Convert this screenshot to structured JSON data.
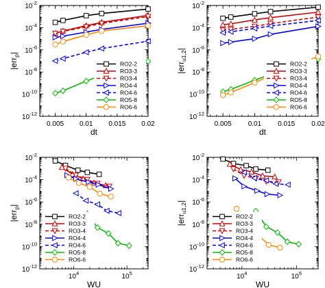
{
  "chart_data": [
    {
      "type": "line",
      "panel": "top-left",
      "xlabel": "dt",
      "ylabel_main": "|err",
      "ylabel_sub": "p",
      "ylabel_end": "|",
      "xscale": "linear",
      "yscale": "log",
      "xlim": [
        0.0025,
        0.02
      ],
      "ylim_exp": [
        -12,
        -2
      ],
      "xticks": [
        0.005,
        0.01,
        0.015,
        0.02
      ],
      "xtick_labels": [
        "0.005",
        "0.01",
        "0.015",
        "0.02"
      ],
      "ytick_exps": [
        -12,
        -10,
        -8,
        -6,
        -4,
        -2
      ],
      "ytick_base": "10",
      "ytick_exp_labels": [
        "-12",
        "-10",
        "-8",
        "-6",
        "-4",
        "-2"
      ],
      "legend_position": "inside lower-right",
      "series": [
        {
          "name": "RO2-2",
          "color": "#000000",
          "dash": false,
          "marker": "square",
          "x": [
            0.005,
            0.00625,
            0.01,
            0.0125,
            0.02
          ],
          "y": [
            0.0003,
            0.00045,
            0.0012,
            0.0019,
            0.0048
          ]
        },
        {
          "name": "RO3-3",
          "color": "#cc0000",
          "dash": false,
          "marker": "triangle-up",
          "x": [
            0.005,
            0.00625,
            0.01,
            0.0125,
            0.02
          ],
          "y": [
            3e-05,
            5e-05,
            0.00015,
            0.0003,
            0.0013
          ]
        },
        {
          "name": "RO3-4",
          "color": "#cc0000",
          "dash": true,
          "marker": "triangle-down",
          "x": [
            0.005,
            0.00625,
            0.01,
            0.0125,
            0.02
          ],
          "y": [
            3e-05,
            4.5e-05,
            0.00012,
            0.00024,
            0.001
          ]
        },
        {
          "name": "RO4-4",
          "color": "#0000ff",
          "dash": false,
          "marker": "triangle-right",
          "x": [
            0.005,
            0.00625,
            0.01,
            0.0125,
            0.02
          ],
          "y": [
            1.3e-05,
            1.7e-05,
            4e-05,
            7e-05,
            0.00025
          ]
        },
        {
          "name": "RO4-6",
          "color": "#0000ff",
          "dash": true,
          "marker": "triangle-left",
          "x": [
            0.005,
            0.00625,
            0.01,
            0.0125,
            0.02
          ],
          "y": [
            1e-07,
            1.6e-07,
            6e-07,
            1.3e-06,
            6e-06
          ]
        },
        {
          "name": "RO5-8",
          "color": "#00bb00",
          "dash": false,
          "marker": "diamond",
          "x": [
            0.005,
            0.00625,
            0.01,
            0.0125,
            0.02
          ],
          "y": [
            1.2e-10,
            2e-10,
            1.5e-09,
            5e-09,
            9e-08
          ]
        },
        {
          "name": "RO6-6",
          "color": "#ff8800",
          "dash": false,
          "marker": "circle",
          "x": [
            0.005,
            0.00625,
            0.01,
            0.0125,
            0.02
          ],
          "y": [
            3e-06,
            5.5e-06,
            2.2e-05,
            5e-05,
            0.00015
          ]
        }
      ]
    },
    {
      "type": "line",
      "panel": "top-right",
      "xlabel": "dt",
      "ylabel_main": "|err",
      "ylabel_sub": "u1,2",
      "ylabel_end": "|",
      "xscale": "linear",
      "yscale": "log",
      "xlim": [
        0.0025,
        0.02
      ],
      "ylim_exp": [
        -12,
        -2
      ],
      "xticks": [
        0.005,
        0.01,
        0.015,
        0.02
      ],
      "xtick_labels": [
        "0.005",
        "0.01",
        "0.015",
        "0.02"
      ],
      "ytick_exps": [
        -12,
        -10,
        -8,
        -6,
        -4,
        -2
      ],
      "ytick_base": "10",
      "ytick_exp_labels": [
        "-12",
        "-10",
        "-8",
        "-6",
        "-4",
        "-2"
      ],
      "legend_position": "inside lower-right",
      "series": [
        {
          "name": "RO2-2",
          "color": "#000000",
          "dash": false,
          "marker": "square",
          "x": [
            0.005,
            0.00625,
            0.01,
            0.0125,
            0.02
          ],
          "y": [
            0.0007,
            0.0009,
            0.0018,
            0.0028,
            0.007
          ]
        },
        {
          "name": "RO3-3",
          "color": "#cc0000",
          "dash": false,
          "marker": "triangle-up",
          "x": [
            0.005,
            0.00625,
            0.01,
            0.0125,
            0.02
          ],
          "y": [
            0.00018,
            0.00022,
            0.0005,
            0.0008,
            0.0025
          ]
        },
        {
          "name": "RO3-4",
          "color": "#cc0000",
          "dash": true,
          "marker": "triangle-down",
          "x": [
            0.005,
            0.00625,
            0.01,
            0.0125,
            0.02
          ],
          "y": [
            6e-05,
            7e-05,
            0.00013,
            0.00023,
            0.0009
          ]
        },
        {
          "name": "RO4-4",
          "color": "#0000ff",
          "dash": false,
          "marker": "triangle-right",
          "x": [
            0.005,
            0.00625,
            0.01,
            0.0125,
            0.02
          ],
          "y": [
            4e-06,
            5e-06,
            1e-05,
            2.5e-05,
            0.00013
          ]
        },
        {
          "name": "RO4-6",
          "color": "#0000ff",
          "dash": true,
          "marker": "triangle-left",
          "x": [
            0.005,
            0.00625,
            0.01,
            0.0125,
            0.02
          ],
          "y": [
            3.5e-05,
            4.2e-05,
            8.5e-05,
            0.00014,
            0.00045
          ]
        },
        {
          "name": "RO5-8",
          "color": "#00bb00",
          "dash": false,
          "marker": "diamond",
          "x": [
            0.005,
            0.00625,
            0.01,
            0.0125,
            0.02
          ],
          "y": [
            1.6e-10,
            2.7e-10,
            1.8e-09,
            6e-09,
            1.5e-07
          ]
        },
        {
          "name": "RO6-6",
          "color": "#ff8800",
          "dash": false,
          "marker": "circle",
          "x": [
            0.005,
            0.00625,
            0.01,
            0.0125,
            0.02
          ],
          "y": [
            8e-11,
            1.4e-10,
            1.1e-09,
            4.5e-09,
            2.5e-07
          ]
        }
      ]
    },
    {
      "type": "line",
      "panel": "bottom-left",
      "xlabel": "WU",
      "ylabel_main": "|err",
      "ylabel_sub": "p",
      "ylabel_end": "|",
      "xscale": "log",
      "yscale": "log",
      "xlim": [
        2300,
        250000
      ],
      "ylim_exp": [
        -12,
        -2
      ],
      "xtick_exps": [
        4,
        5
      ],
      "xtick_base": "10",
      "xtick_exp_labels": [
        "4",
        "5"
      ],
      "ytick_exps": [
        -12,
        -10,
        -8,
        -6,
        -4,
        -2
      ],
      "ytick_base": "10",
      "ytick_exp_labels": [
        "-12",
        "-10",
        "-8",
        "-6",
        "-4",
        "-2"
      ],
      "legend_position": "inside lower-left",
      "series": [
        {
          "name": "RO2-2",
          "color": "#000000",
          "dash": false,
          "marker": "square",
          "x": [
            4500,
            7000,
            12000,
            18000,
            30000
          ],
          "y": [
            0.0048,
            0.0019,
            0.0007,
            0.00045,
            0.0003
          ]
        },
        {
          "name": "RO3-3",
          "color": "#cc0000",
          "dash": false,
          "marker": "triangle-up",
          "x": [
            6000,
            9500,
            15000,
            24000,
            40000
          ],
          "y": [
            0.0013,
            0.0003,
            0.00012,
            5e-05,
            3e-05
          ]
        },
        {
          "name": "RO3-4",
          "color": "#cc0000",
          "dash": true,
          "marker": "triangle-down",
          "x": [
            7000,
            11000,
            18000,
            28000,
            47000
          ],
          "y": [
            0.001,
            0.00025,
            0.0001,
            4.5e-05,
            2.5e-05
          ]
        },
        {
          "name": "RO4-4",
          "color": "#0000ff",
          "dash": false,
          "marker": "triangle-right",
          "x": [
            7500,
            11000,
            19000,
            29000,
            50000
          ],
          "y": [
            0.00025,
            0.00012,
            6e-05,
            3.5e-05,
            1.5e-05
          ]
        },
        {
          "name": "RO4-6",
          "color": "#0000ff",
          "dash": true,
          "marker": "triangle-left",
          "x": [
            11000,
            17000,
            28000,
            42000,
            70000
          ],
          "y": [
            6e-06,
            1.3e-06,
            6e-07,
            1.6e-07,
            1e-07
          ]
        },
        {
          "name": "RO5-8",
          "color": "#00bb00",
          "dash": false,
          "marker": "diamond",
          "x": [
            18000,
            28000,
            45000,
            68000,
            110000
          ],
          "y": [
            9e-08,
            5e-09,
            1.5e-09,
            2e-10,
            1.2e-10
          ]
        },
        {
          "name": "RO6-6",
          "color": "#ff8800",
          "dash": false,
          "marker": "circle",
          "x": [
            8000,
            12500,
            20000,
            31000,
            50000
          ],
          "y": [
            0.00015,
            5e-05,
            2.2e-05,
            5.5e-06,
            3e-06
          ]
        }
      ]
    },
    {
      "type": "line",
      "panel": "bottom-right",
      "xlabel": "WU",
      "ylabel_main": "|err",
      "ylabel_sub": "u1,2",
      "ylabel_end": "|",
      "xscale": "log",
      "yscale": "log",
      "xlim": [
        2300,
        250000
      ],
      "ylim_exp": [
        -12,
        -2
      ],
      "xtick_exps": [
        4,
        5
      ],
      "xtick_base": "10",
      "xtick_exp_labels": [
        "4",
        "5"
      ],
      "ytick_exps": [
        -12,
        -10,
        -8,
        -6,
        -4,
        -2
      ],
      "ytick_base": "10",
      "ytick_exp_labels": [
        "-12",
        "-10",
        "-8",
        "-6",
        "-4",
        "-2"
      ],
      "legend_position": "inside lower-left",
      "series": [
        {
          "name": "RO2-2",
          "color": "#000000",
          "dash": false,
          "marker": "square",
          "x": [
            4500,
            7000,
            12000,
            18000,
            30000
          ],
          "y": [
            0.007,
            0.0028,
            0.0018,
            0.0009,
            0.0007
          ]
        },
        {
          "name": "RO3-3",
          "color": "#cc0000",
          "dash": false,
          "marker": "triangle-up",
          "x": [
            6000,
            9500,
            15000,
            24000,
            40000
          ],
          "y": [
            0.0025,
            0.0008,
            0.0005,
            0.00022,
            0.00018
          ]
        },
        {
          "name": "RO3-4",
          "color": "#cc0000",
          "dash": true,
          "marker": "triangle-down",
          "x": [
            7000,
            11000,
            18000,
            28000,
            47000
          ],
          "y": [
            0.0009,
            0.00023,
            0.00013,
            7e-05,
            6e-05
          ]
        },
        {
          "name": "RO4-4",
          "color": "#0000ff",
          "dash": false,
          "marker": "triangle-right",
          "x": [
            7500,
            11000,
            19000,
            29000,
            50000
          ],
          "y": [
            0.00013,
            2.5e-05,
            1e-05,
            5e-06,
            4e-06
          ]
        },
        {
          "name": "RO4-6",
          "color": "#0000ff",
          "dash": true,
          "marker": "triangle-left",
          "x": [
            11000,
            17000,
            28000,
            42000,
            70000
          ],
          "y": [
            0.00045,
            0.00014,
            8.5e-05,
            4.2e-05,
            3.5e-05
          ]
        },
        {
          "name": "RO5-8",
          "color": "#00bb00",
          "dash": false,
          "marker": "diamond",
          "x": [
            18000,
            28000,
            45000,
            68000,
            110000
          ],
          "y": [
            1.5e-07,
            6e-09,
            1.8e-09,
            2.7e-10,
            1.6e-10
          ]
        },
        {
          "name": "RO6-6",
          "color": "#ff8800",
          "dash": false,
          "marker": "circle",
          "x": [
            8000,
            12500,
            20000,
            31000,
            50000
          ],
          "y": [
            2.5e-07,
            4.5e-09,
            1.1e-09,
            1.4e-10,
            8e-11
          ]
        }
      ]
    }
  ]
}
